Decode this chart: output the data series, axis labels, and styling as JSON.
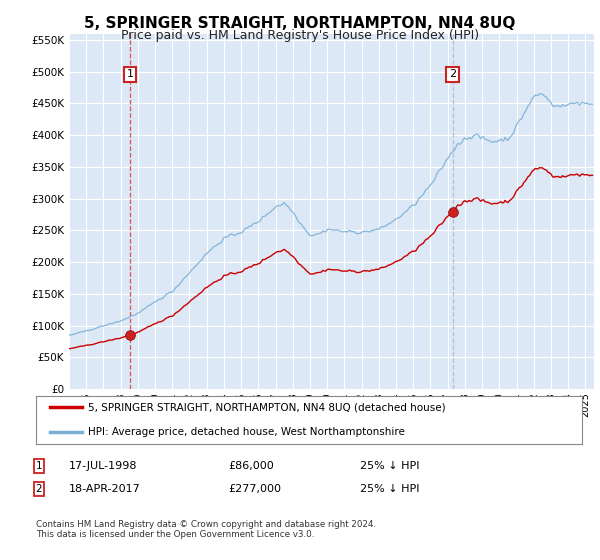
{
  "title": "5, SPRINGER STRAIGHT, NORTHAMPTON, NN4 8UQ",
  "subtitle": "Price paid vs. HM Land Registry's House Price Index (HPI)",
  "title_fontsize": 11,
  "subtitle_fontsize": 9,
  "background_color": "#ffffff",
  "plot_bg_color": "#dce8f5",
  "grid_color": "#ffffff",
  "ylim": [
    0,
    560000
  ],
  "yticks": [
    0,
    50000,
    100000,
    150000,
    200000,
    250000,
    300000,
    350000,
    400000,
    450000,
    500000,
    550000
  ],
  "ytick_labels": [
    "£0",
    "£50K",
    "£100K",
    "£150K",
    "£200K",
    "£250K",
    "£300K",
    "£350K",
    "£400K",
    "£450K",
    "£500K",
    "£550K"
  ],
  "hpi_color": "#7ab0d8",
  "price_color": "#cc0000",
  "vline1_color": "#dd4444",
  "vline2_color": "#aaaacc",
  "marker_color": "#990000",
  "transaction1_year": 1998.54,
  "transaction1_price": 86000,
  "transaction2_year": 2017.29,
  "transaction2_price": 277000,
  "legend_label1": "5, SPRINGER STRAIGHT, NORTHAMPTON, NN4 8UQ (detached house)",
  "legend_label2": "HPI: Average price, detached house, West Northamptonshire",
  "note1_label": "1",
  "note1_date": "17-JUL-1998",
  "note1_price": "£86,000",
  "note1_pct": "25% ↓ HPI",
  "note2_label": "2",
  "note2_date": "18-APR-2017",
  "note2_price": "£277,000",
  "note2_pct": "25% ↓ HPI",
  "footer": "Contains HM Land Registry data © Crown copyright and database right 2024.\nThis data is licensed under the Open Government Licence v3.0.",
  "xmin": 1995,
  "xmax": 2025.5
}
